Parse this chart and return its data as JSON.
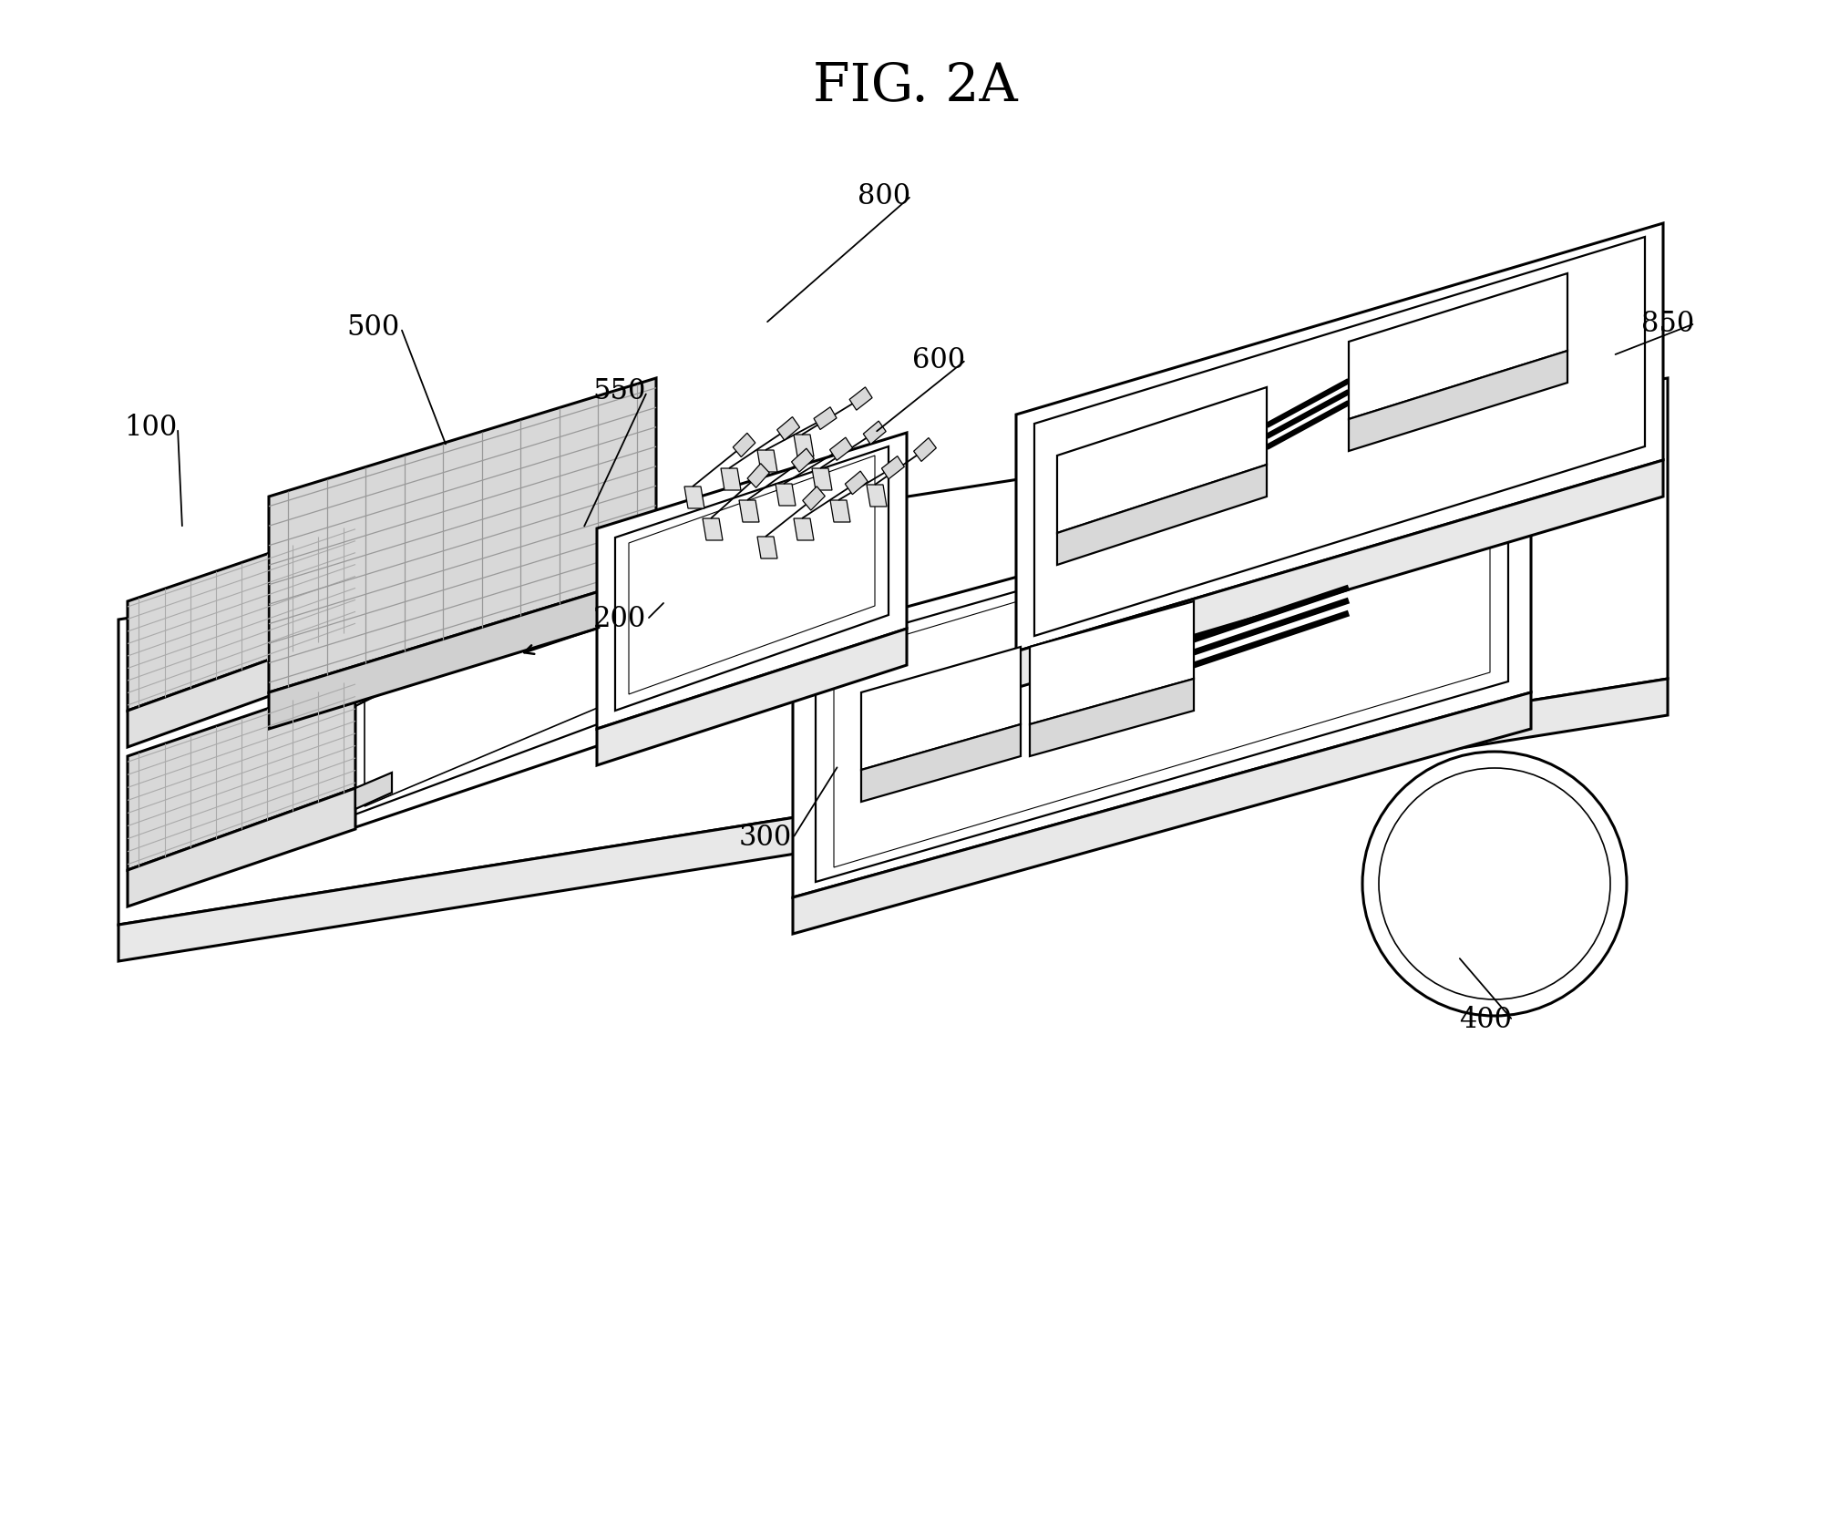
{
  "title": "FIG. 2A",
  "title_fontsize": 42,
  "title_font": "serif",
  "bg": "#ffffff",
  "lc": "#000000",
  "lw": 1.6,
  "hatch_color": "#aaaaaa",
  "gray_light": "#d8d8d8",
  "gray_mid": "#c0c0c0"
}
